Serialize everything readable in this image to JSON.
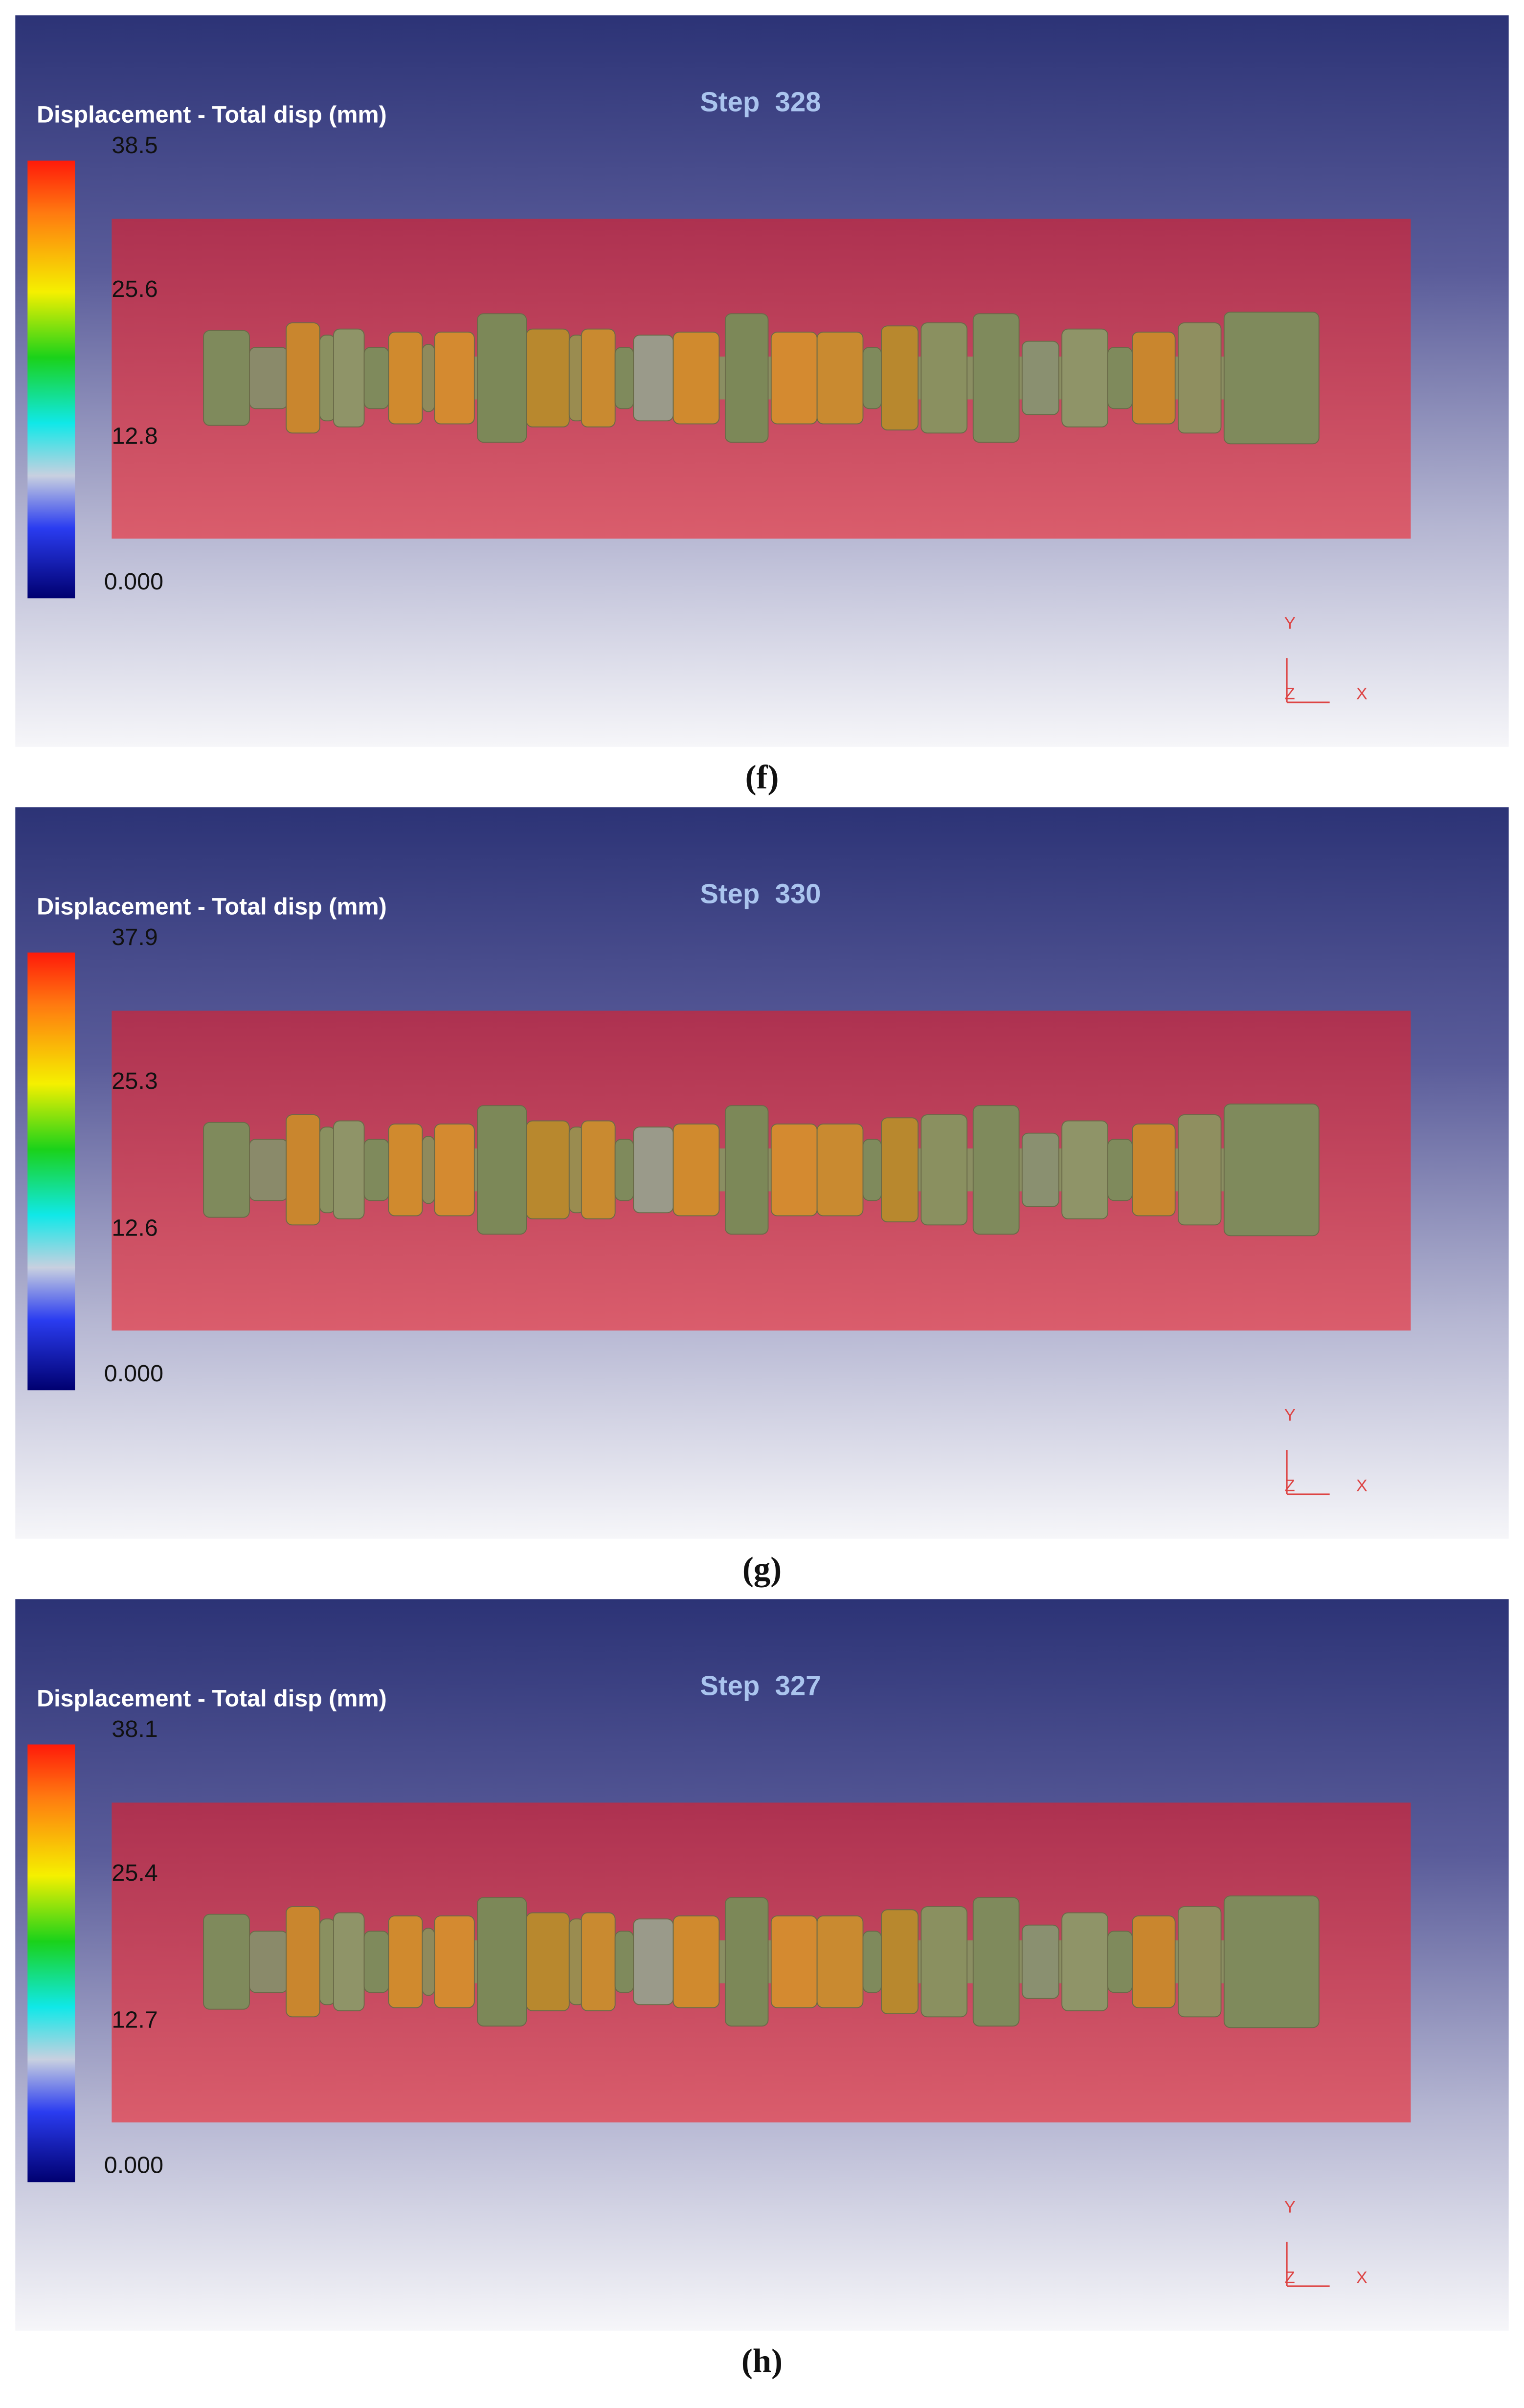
{
  "panels": [
    {
      "legend_title": "Displacement - Total disp (mm)",
      "step": "Step 328",
      "scale_labels": [
        "38.5",
        "25.6",
        "12.8",
        "0.000"
      ],
      "axis_labels": [
        "Y",
        "Z",
        "X"
      ],
      "caption": "(f)"
    },
    {
      "legend_title": "Displacement - Total disp (mm)",
      "step": "Step 330",
      "scale_labels": [
        "37.9",
        "25.3",
        "12.6",
        "0.000"
      ],
      "axis_labels": [
        "Y",
        "Z",
        "X"
      ],
      "caption": "(g)"
    },
    {
      "legend_title": "Displacement - Total disp (mm)",
      "step": "Step 327",
      "scale_labels": [
        "38.1",
        "25.4",
        "12.7",
        "0.000"
      ],
      "axis_labels": [
        "Y",
        "Z",
        "X"
      ],
      "caption": "(h)"
    }
  ]
}
